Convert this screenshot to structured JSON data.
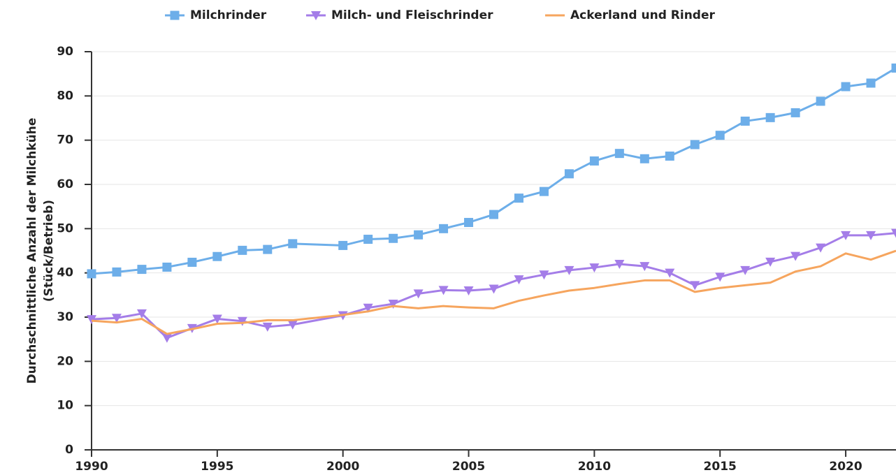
{
  "chart_data": {
    "type": "line",
    "ylabel": [
      "Durchschnittliche Anzahl der Milchkühe",
      "(Stück/Betrieb)"
    ],
    "x": [
      1990,
      1991,
      1992,
      1993,
      1994,
      1995,
      1996,
      1997,
      1998,
      2000,
      2001,
      2002,
      2003,
      2004,
      2005,
      2006,
      2007,
      2008,
      2009,
      2010,
      2011,
      2012,
      2013,
      2014,
      2015,
      2016,
      2017,
      2018,
      2019,
      2020,
      2021,
      2022
    ],
    "series": [
      {
        "name": "Milchrinder",
        "color": "#6daee9",
        "marker": "square",
        "values": [
          39.8,
          40.2,
          40.8,
          41.3,
          42.4,
          43.7,
          45.1,
          45.3,
          46.6,
          46.2,
          47.6,
          47.8,
          48.6,
          50.0,
          51.4,
          53.2,
          56.9,
          58.4,
          62.4,
          65.3,
          67.0,
          65.8,
          66.4,
          69.0,
          71.1,
          74.3,
          75.1,
          76.2,
          78.8,
          82.1,
          82.9,
          86.3
        ]
      },
      {
        "name": "Milch- und Fleischrinder",
        "color": "#a47de8",
        "marker": "triangle-down",
        "values": [
          29.5,
          29.8,
          30.8,
          25.3,
          27.5,
          29.6,
          29.1,
          27.8,
          28.3,
          30.4,
          32.1,
          33.0,
          35.3,
          36.1,
          36.0,
          36.4,
          38.5,
          39.6,
          40.6,
          41.2,
          42.0,
          41.5,
          40.0,
          37.2,
          39.1,
          40.6,
          42.5,
          43.8,
          45.7,
          48.5,
          48.5,
          49.0
        ]
      },
      {
        "name": "Ackerland und Rinder",
        "color": "#f6a55e",
        "marker": "none",
        "values": [
          29.2,
          28.8,
          29.6,
          26.2,
          27.3,
          28.5,
          28.7,
          29.3,
          29.3,
          30.5,
          31.3,
          32.5,
          32.0,
          32.5,
          32.2,
          32.0,
          33.7,
          34.9,
          36.0,
          36.6,
          37.5,
          38.3,
          38.3,
          35.7,
          36.6,
          37.2,
          37.8,
          40.3,
          41.5,
          44.4,
          43.0,
          45.0
        ]
      }
    ],
    "xlim": [
      1990,
      2022
    ],
    "xticks": [
      1990,
      1995,
      2000,
      2005,
      2010,
      2015,
      2020
    ],
    "ylim": [
      0,
      90
    ],
    "yticks": [
      0,
      10,
      20,
      30,
      40,
      50,
      60,
      70,
      80,
      90
    ],
    "grid": true,
    "legend": "top"
  }
}
